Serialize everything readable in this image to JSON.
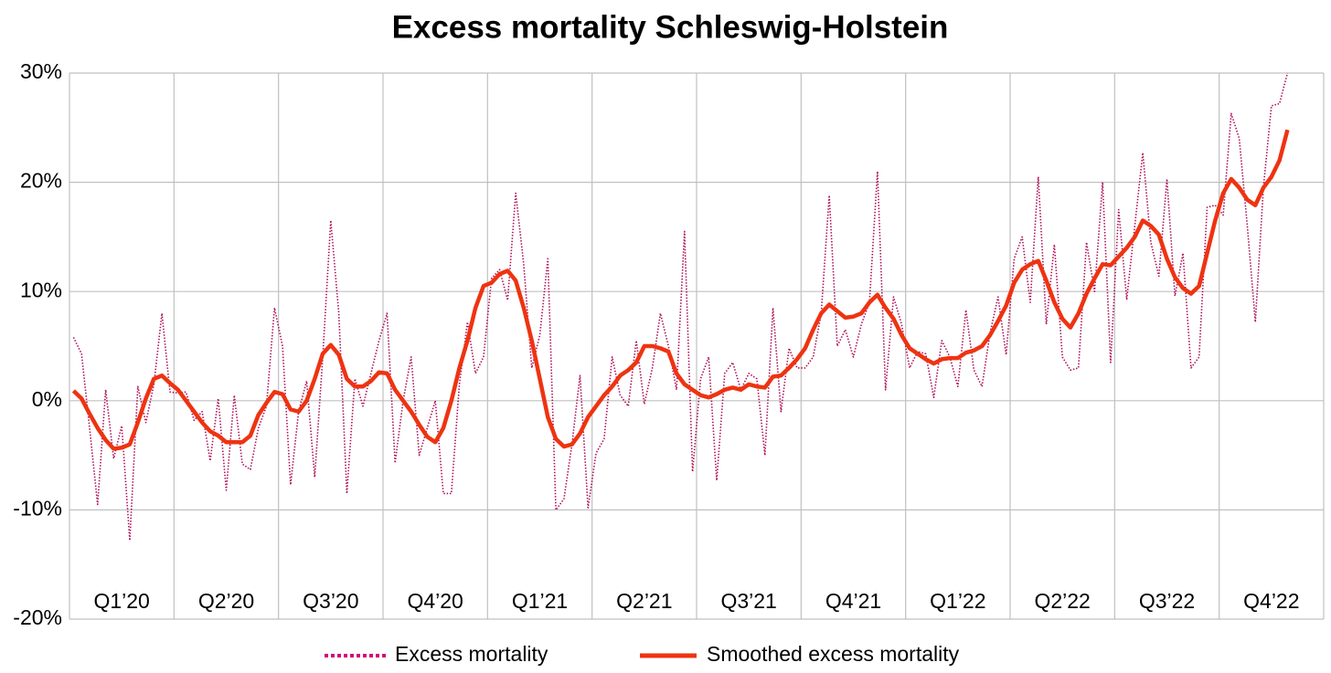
{
  "chart_data": {
    "type": "line",
    "title": "Excess mortality Schleswig-Holstein",
    "categories": [
      null,
      null,
      null,
      null,
      null,
      null,
      "Q1’20",
      null,
      null,
      null,
      null,
      null,
      null,
      null,
      null,
      null,
      null,
      null,
      null,
      "Q2’20",
      null,
      null,
      null,
      null,
      null,
      null,
      null,
      null,
      null,
      null,
      null,
      null,
      "Q3’20",
      null,
      null,
      null,
      null,
      null,
      null,
      null,
      null,
      null,
      null,
      null,
      null,
      "Q4’20",
      null,
      null,
      null,
      null,
      null,
      null,
      null,
      null,
      null,
      null,
      null,
      null,
      "Q1’21",
      null,
      null,
      null,
      null,
      null,
      null,
      null,
      null,
      null,
      null,
      null,
      null,
      "Q2’21",
      null,
      null,
      null,
      null,
      null,
      null,
      null,
      null,
      null,
      null,
      null,
      null,
      "Q3’21",
      null,
      null,
      null,
      null,
      null,
      null,
      null,
      null,
      null,
      null,
      null,
      null,
      "Q4’21",
      null,
      null,
      null,
      null,
      null,
      null,
      null,
      null,
      null,
      null,
      null,
      null,
      "Q1’22",
      null,
      null,
      null,
      null,
      null,
      null,
      null,
      null,
      null,
      null,
      null,
      null,
      "Q2’22",
      null,
      null,
      null,
      null,
      null,
      null,
      null,
      null,
      null,
      null,
      null,
      null,
      "Q3’22",
      null,
      null,
      null,
      null,
      null,
      null,
      null,
      null,
      null,
      null,
      null,
      null,
      "Q4’22",
      null,
      null,
      null,
      null,
      null,
      null
    ],
    "series": [
      {
        "name": "Excess mortality",
        "color": "#b0105a",
        "style": "dotted",
        "values": [
          5.8,
          4.3,
          -2.5,
          -9.5,
          1.0,
          -5.3,
          -2.3,
          -12.8,
          1.3,
          -2.0,
          1.5,
          8.0,
          0.8,
          0.7,
          0.8,
          -1.8,
          -1.0,
          -5.5,
          0.2,
          -8.2,
          0.5,
          -5.8,
          -6.3,
          -2.5,
          -0.5,
          8.5,
          5.0,
          -7.7,
          -1.0,
          1.8,
          -7.0,
          4.0,
          16.5,
          8.0,
          -8.5,
          2.0,
          -0.5,
          2.5,
          5.5,
          8.0,
          -5.7,
          0.0,
          4.0,
          -5.0,
          -2.5,
          0.0,
          -8.5,
          -8.5,
          1.5,
          7.2,
          2.5,
          4.0,
          11.2,
          12.0,
          9.2,
          19.0,
          12.5,
          3.0,
          6.0,
          13.0,
          -10.0,
          -9.0,
          -4.0,
          2.3,
          -9.8,
          -4.8,
          -3.5,
          4.0,
          0.5,
          -0.5,
          5.5,
          -0.3,
          3.0,
          8.0,
          5.0,
          1.0,
          15.5,
          -6.5,
          2.0,
          4.0,
          -7.3,
          2.5,
          3.5,
          1.0,
          2.5,
          2.0,
          -5.0,
          8.5,
          -1.0,
          4.8,
          3.0,
          3.0,
          4.0,
          8.0,
          18.8,
          5.0,
          6.5,
          4.0,
          7.0,
          9.0,
          21.0,
          1.0,
          9.5,
          7.0,
          3.0,
          4.5,
          4.3,
          0.3,
          5.5,
          4.0,
          1.3,
          8.3,
          2.8,
          1.3,
          6.2,
          9.5,
          4.2,
          13.0,
          15.0,
          9.0,
          20.5,
          7.0,
          14.3,
          4.0,
          2.8,
          3.0,
          14.5,
          10.0,
          20.0,
          3.5,
          17.5,
          9.3,
          16.0,
          22.7,
          14.5,
          11.4,
          20.3,
          9.6,
          13.5,
          3.0,
          4.0,
          17.7,
          17.9,
          17.0,
          26.3,
          24.0,
          16.0,
          7.2,
          19.5,
          27.0,
          27.2,
          30.0,
          null,
          null,
          null,
          null
        ]
      },
      {
        "name": "Smoothed excess mortality",
        "color": "#ee3311",
        "style": "solid",
        "values": [
          0.9,
          0.2,
          -1.2,
          -2.5,
          -3.6,
          -4.4,
          -4.3,
          -4.0,
          -2.0,
          0.2,
          2.0,
          2.3,
          1.6,
          1.0,
          0.0,
          -1.0,
          -2.0,
          -2.8,
          -3.2,
          -3.8,
          -3.8,
          -3.8,
          -3.2,
          -1.3,
          -0.2,
          0.8,
          0.6,
          -0.8,
          -1.0,
          0.0,
          2.0,
          4.3,
          5.1,
          4.2,
          2.0,
          1.3,
          1.3,
          1.8,
          2.6,
          2.5,
          1.0,
          0.0,
          -1.0,
          -2.2,
          -3.3,
          -3.8,
          -2.5,
          0.0,
          3.0,
          5.5,
          8.5,
          10.5,
          10.8,
          11.6,
          11.9,
          11.0,
          8.5,
          5.5,
          2.0,
          -1.5,
          -3.5,
          -4.2,
          -4.0,
          -3.0,
          -1.5,
          -0.5,
          0.5,
          1.3,
          2.3,
          2.8,
          3.5,
          5.0,
          5.0,
          4.8,
          4.5,
          2.5,
          1.5,
          1.0,
          0.5,
          0.3,
          0.6,
          1.0,
          1.2,
          1.0,
          1.5,
          1.3,
          1.2,
          2.2,
          2.3,
          3.0,
          3.8,
          4.8,
          6.5,
          8.0,
          8.8,
          8.2,
          7.6,
          7.7,
          8.0,
          9.0,
          9.7,
          8.5,
          7.5,
          6.0,
          4.8,
          4.3,
          3.8,
          3.4,
          3.8,
          3.9,
          3.9,
          4.4,
          4.6,
          5.0,
          6.0,
          7.3,
          8.7,
          10.8,
          12.0,
          12.5,
          12.8,
          11.0,
          9.0,
          7.5,
          6.7,
          8.0,
          9.8,
          11.2,
          12.5,
          12.4,
          13.2,
          14.0,
          15.0,
          16.5,
          16.0,
          15.2,
          13.0,
          11.3,
          10.3,
          9.8,
          10.5,
          13.5,
          16.5,
          19.0,
          20.3,
          19.5,
          18.4,
          17.9,
          19.5,
          20.5,
          22.0,
          24.8,
          null,
          null,
          null,
          null
        ]
      }
    ],
    "ylim": [
      -20,
      30
    ],
    "yticks": [
      {
        "value": -20,
        "label": "-20%"
      },
      {
        "value": -10,
        "label": "-10%"
      },
      {
        "value": 0,
        "label": "0%"
      },
      {
        "value": 10,
        "label": "10%"
      },
      {
        "value": 20,
        "label": "20%"
      },
      {
        "value": 30,
        "label": "30%"
      }
    ],
    "grid": true,
    "legend": "bottom"
  }
}
